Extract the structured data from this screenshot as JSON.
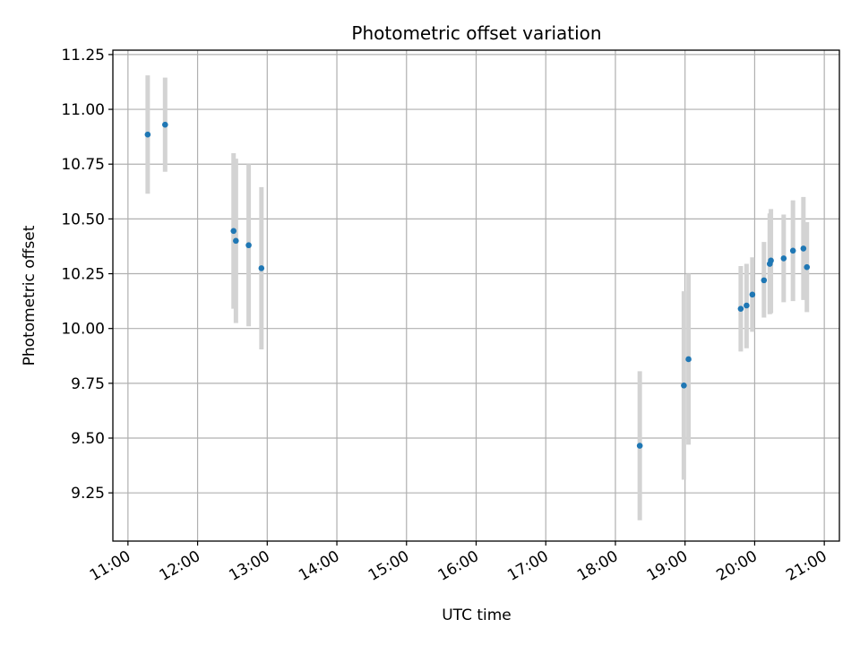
{
  "chart_data": {
    "type": "scatter",
    "title": "Photometric offset variation",
    "xlabel": "UTC time",
    "ylabel": "Photometric offset",
    "xlim": [
      "10:47",
      "21:13"
    ],
    "ylim": [
      9.03,
      11.27
    ],
    "grid": true,
    "x_ticks": [
      "11:00",
      "12:00",
      "13:00",
      "14:00",
      "15:00",
      "16:00",
      "17:00",
      "18:00",
      "19:00",
      "20:00",
      "21:00"
    ],
    "y_ticks": [
      9.25,
      9.5,
      9.75,
      10.0,
      10.25,
      10.5,
      10.75,
      11.0,
      11.25
    ],
    "y_tick_labels": [
      "9.25",
      "9.50",
      "9.75",
      "10.00",
      "10.25",
      "10.50",
      "10.75",
      "11.00",
      "11.25"
    ],
    "colors": {
      "points": "#1f77b4",
      "error_bars": "#d3d3d3",
      "grid": "#b0b0b0"
    },
    "points": [
      {
        "time": "11:17",
        "y": 10.885,
        "ylow": 10.615,
        "yhigh": 11.155
      },
      {
        "time": "11:32",
        "y": 10.93,
        "ylow": 10.715,
        "yhigh": 11.145
      },
      {
        "time": "12:31",
        "y": 10.445,
        "ylow": 10.09,
        "yhigh": 10.8
      },
      {
        "time": "12:33",
        "y": 10.4,
        "ylow": 10.025,
        "yhigh": 10.775
      },
      {
        "time": "12:44",
        "y": 10.38,
        "ylow": 10.01,
        "yhigh": 10.75
      },
      {
        "time": "12:55",
        "y": 10.275,
        "ylow": 9.905,
        "yhigh": 10.645
      },
      {
        "time": "18:21",
        "y": 9.465,
        "ylow": 9.125,
        "yhigh": 9.805
      },
      {
        "time": "18:59",
        "y": 9.74,
        "ylow": 9.31,
        "yhigh": 10.17
      },
      {
        "time": "19:03",
        "y": 9.86,
        "ylow": 9.47,
        "yhigh": 10.25
      },
      {
        "time": "19:48",
        "y": 10.09,
        "ylow": 9.895,
        "yhigh": 10.285
      },
      {
        "time": "19:53",
        "y": 10.105,
        "ylow": 9.91,
        "yhigh": 10.295
      },
      {
        "time": "19:58",
        "y": 10.155,
        "ylow": 9.985,
        "yhigh": 10.325
      },
      {
        "time": "20:08",
        "y": 10.22,
        "ylow": 10.05,
        "yhigh": 10.395
      },
      {
        "time": "20:13",
        "y": 10.295,
        "ylow": 10.065,
        "yhigh": 10.525
      },
      {
        "time": "20:14",
        "y": 10.31,
        "ylow": 10.07,
        "yhigh": 10.545
      },
      {
        "time": "20:25",
        "y": 10.32,
        "ylow": 10.12,
        "yhigh": 10.52
      },
      {
        "time": "20:33",
        "y": 10.355,
        "ylow": 10.125,
        "yhigh": 10.585
      },
      {
        "time": "20:42",
        "y": 10.365,
        "ylow": 10.13,
        "yhigh": 10.6
      },
      {
        "time": "20:45",
        "y": 10.28,
        "ylow": 10.075,
        "yhigh": 10.485
      }
    ]
  }
}
